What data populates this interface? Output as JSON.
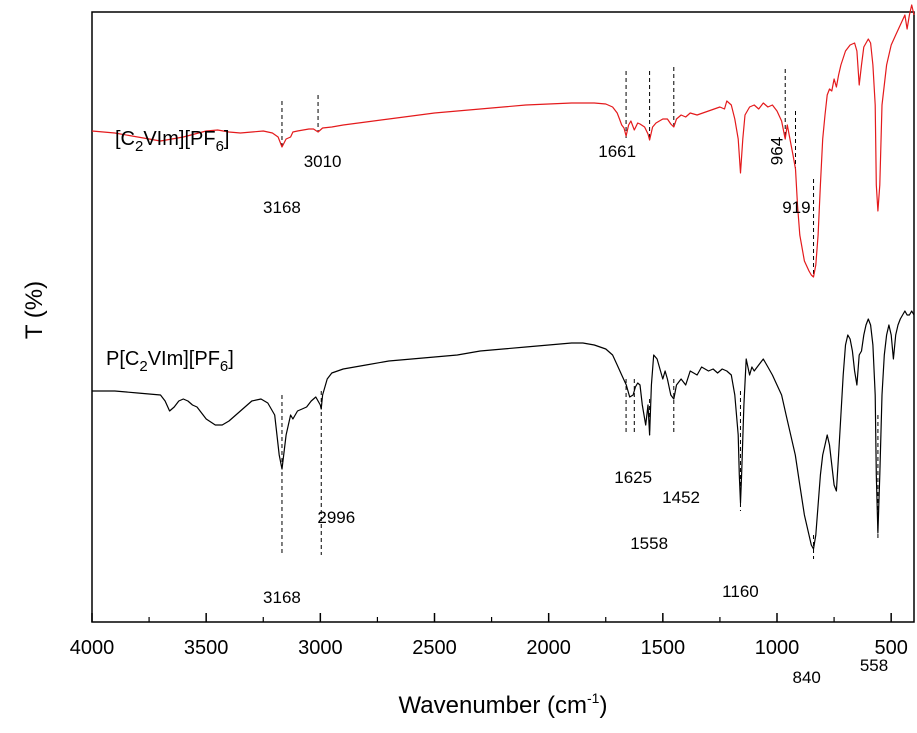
{
  "chart_data": {
    "type": "line",
    "xlabel_main": "Wavenumber (cm",
    "xlabel_sup": "-1",
    "xlabel_end": ")",
    "ylabel": "T (%)",
    "xlim": [
      4000,
      400
    ],
    "x_reversed": true,
    "x_ticks": [
      "4000",
      "3500",
      "3000",
      "2500",
      "2000",
      "1500",
      "1000",
      "500"
    ],
    "y_ticks": [],
    "series": [
      {
        "name_parts": [
          "[C",
          "2",
          "VIm][PF",
          "6",
          "]"
        ],
        "color": "#e41a1c",
        "points": [
          [
            4000,
            0.58
          ],
          [
            3900,
            0.59
          ],
          [
            3800,
            0.61
          ],
          [
            3700,
            0.63
          ],
          [
            3600,
            0.61
          ],
          [
            3500,
            0.58
          ],
          [
            3450,
            0.575
          ],
          [
            3400,
            0.585
          ],
          [
            3350,
            0.59
          ],
          [
            3300,
            0.585
          ],
          [
            3250,
            0.58
          ],
          [
            3210,
            0.59
          ],
          [
            3185,
            0.61
          ],
          [
            3168,
            0.66
          ],
          [
            3150,
            0.62
          ],
          [
            3130,
            0.61
          ],
          [
            3120,
            0.585
          ],
          [
            3100,
            0.58
          ],
          [
            3050,
            0.57
          ],
          [
            3030,
            0.57
          ],
          [
            3010,
            0.585
          ],
          [
            2990,
            0.565
          ],
          [
            2950,
            0.56
          ],
          [
            2900,
            0.55
          ],
          [
            2800,
            0.535
          ],
          [
            2700,
            0.52
          ],
          [
            2600,
            0.505
          ],
          [
            2500,
            0.49
          ],
          [
            2400,
            0.48
          ],
          [
            2300,
            0.47
          ],
          [
            2200,
            0.46
          ],
          [
            2100,
            0.45
          ],
          [
            2000,
            0.445
          ],
          [
            1900,
            0.44
          ],
          [
            1800,
            0.44
          ],
          [
            1750,
            0.445
          ],
          [
            1720,
            0.46
          ],
          [
            1700,
            0.49
          ],
          [
            1690,
            0.52
          ],
          [
            1680,
            0.55
          ],
          [
            1670,
            0.565
          ],
          [
            1661,
            0.605
          ],
          [
            1650,
            0.55
          ],
          [
            1640,
            0.53
          ],
          [
            1625,
            0.575
          ],
          [
            1610,
            0.54
          ],
          [
            1600,
            0.545
          ],
          [
            1580,
            0.56
          ],
          [
            1565,
            0.595
          ],
          [
            1558,
            0.625
          ],
          [
            1545,
            0.56
          ],
          [
            1530,
            0.54
          ],
          [
            1500,
            0.52
          ],
          [
            1480,
            0.52
          ],
          [
            1465,
            0.545
          ],
          [
            1452,
            0.56
          ],
          [
            1440,
            0.52
          ],
          [
            1420,
            0.5
          ],
          [
            1400,
            0.51
          ],
          [
            1380,
            0.49
          ],
          [
            1350,
            0.5
          ],
          [
            1300,
            0.48
          ],
          [
            1250,
            0.46
          ],
          [
            1230,
            0.47
          ],
          [
            1220,
            0.43
          ],
          [
            1200,
            0.45
          ],
          [
            1185,
            0.52
          ],
          [
            1170,
            0.62
          ],
          [
            1160,
            0.79
          ],
          [
            1150,
            0.62
          ],
          [
            1140,
            0.5
          ],
          [
            1120,
            0.46
          ],
          [
            1100,
            0.45
          ],
          [
            1080,
            0.47
          ],
          [
            1060,
            0.44
          ],
          [
            1040,
            0.46
          ],
          [
            1020,
            0.45
          ],
          [
            1000,
            0.48
          ],
          [
            980,
            0.53
          ],
          [
            964,
            0.62
          ],
          [
            955,
            0.55
          ],
          [
            940,
            0.64
          ],
          [
            930,
            0.7
          ],
          [
            919,
            0.77
          ],
          [
            910,
            0.95
          ],
          [
            900,
            1.1
          ],
          [
            880,
            1.23
          ],
          [
            860,
            1.28
          ],
          [
            850,
            1.3
          ],
          [
            840,
            1.31
          ],
          [
            830,
            1.25
          ],
          [
            820,
            1.1
          ],
          [
            810,
            0.85
          ],
          [
            800,
            0.62
          ],
          [
            790,
            0.5
          ],
          [
            780,
            0.4
          ],
          [
            770,
            0.37
          ],
          [
            760,
            0.38
          ],
          [
            750,
            0.32
          ],
          [
            740,
            0.36
          ],
          [
            730,
            0.3
          ],
          [
            720,
            0.25
          ],
          [
            700,
            0.18
          ],
          [
            680,
            0.15
          ],
          [
            660,
            0.14
          ],
          [
            650,
            0.18
          ],
          [
            640,
            0.35
          ],
          [
            630,
            0.25
          ],
          [
            620,
            0.16
          ],
          [
            600,
            0.12
          ],
          [
            590,
            0.14
          ],
          [
            580,
            0.25
          ],
          [
            570,
            0.45
          ],
          [
            565,
            0.85
          ],
          [
            558,
            0.98
          ],
          [
            550,
            0.85
          ],
          [
            540,
            0.45
          ],
          [
            520,
            0.25
          ],
          [
            500,
            0.15
          ],
          [
            480,
            0.1
          ],
          [
            460,
            0.05
          ],
          [
            440,
            0.0
          ],
          [
            430,
            0.07
          ],
          [
            420,
            0.0
          ],
          [
            410,
            -0.05
          ],
          [
            400,
            0.0
          ]
        ]
      },
      {
        "name_parts": [
          "P[C",
          "2",
          "VIm][PF",
          "6",
          "]"
        ],
        "color": "#000000",
        "points": [
          [
            4000,
            1.88
          ],
          [
            3900,
            1.88
          ],
          [
            3800,
            1.89
          ],
          [
            3700,
            1.9
          ],
          [
            3680,
            1.93
          ],
          [
            3660,
            1.98
          ],
          [
            3640,
            1.96
          ],
          [
            3620,
            1.93
          ],
          [
            3600,
            1.92
          ],
          [
            3580,
            1.93
          ],
          [
            3560,
            1.95
          ],
          [
            3540,
            1.96
          ],
          [
            3520,
            1.99
          ],
          [
            3500,
            2.02
          ],
          [
            3460,
            2.05
          ],
          [
            3430,
            2.05
          ],
          [
            3400,
            2.03
          ],
          [
            3350,
            1.98
          ],
          [
            3300,
            1.93
          ],
          [
            3260,
            1.92
          ],
          [
            3230,
            1.94
          ],
          [
            3200,
            2.0
          ],
          [
            3180,
            2.2
          ],
          [
            3168,
            2.27
          ],
          [
            3150,
            2.1
          ],
          [
            3130,
            2.0
          ],
          [
            3120,
            2.02
          ],
          [
            3100,
            1.98
          ],
          [
            3080,
            1.97
          ],
          [
            3060,
            1.96
          ],
          [
            3040,
            1.93
          ],
          [
            3020,
            1.91
          ],
          [
            3000,
            1.95
          ],
          [
            2996,
            1.97
          ],
          [
            2990,
            1.9
          ],
          [
            2970,
            1.82
          ],
          [
            2950,
            1.79
          ],
          [
            2900,
            1.77
          ],
          [
            2800,
            1.75
          ],
          [
            2700,
            1.73
          ],
          [
            2600,
            1.72
          ],
          [
            2500,
            1.71
          ],
          [
            2400,
            1.7
          ],
          [
            2300,
            1.68
          ],
          [
            2200,
            1.67
          ],
          [
            2100,
            1.66
          ],
          [
            2000,
            1.65
          ],
          [
            1900,
            1.64
          ],
          [
            1850,
            1.64
          ],
          [
            1800,
            1.65
          ],
          [
            1750,
            1.67
          ],
          [
            1720,
            1.7
          ],
          [
            1700,
            1.75
          ],
          [
            1680,
            1.8
          ],
          [
            1660,
            1.85
          ],
          [
            1645,
            1.91
          ],
          [
            1630,
            1.9
          ],
          [
            1620,
            1.86
          ],
          [
            1610,
            1.84
          ],
          [
            1600,
            1.85
          ],
          [
            1590,
            1.95
          ],
          [
            1575,
            2.05
          ],
          [
            1565,
            1.95
          ],
          [
            1558,
            2.1
          ],
          [
            1550,
            1.85
          ],
          [
            1540,
            1.7
          ],
          [
            1525,
            1.72
          ],
          [
            1510,
            1.78
          ],
          [
            1500,
            1.82
          ],
          [
            1490,
            1.78
          ],
          [
            1480,
            1.82
          ],
          [
            1465,
            1.9
          ],
          [
            1452,
            1.92
          ],
          [
            1440,
            1.85
          ],
          [
            1420,
            1.82
          ],
          [
            1400,
            1.85
          ],
          [
            1380,
            1.78
          ],
          [
            1350,
            1.8
          ],
          [
            1330,
            1.76
          ],
          [
            1300,
            1.78
          ],
          [
            1280,
            1.77
          ],
          [
            1260,
            1.79
          ],
          [
            1240,
            1.77
          ],
          [
            1220,
            1.78
          ],
          [
            1200,
            1.8
          ],
          [
            1185,
            1.9
          ],
          [
            1170,
            2.1
          ],
          [
            1165,
            2.3
          ],
          [
            1160,
            2.44
          ],
          [
            1155,
            2.3
          ],
          [
            1145,
            1.95
          ],
          [
            1135,
            1.72
          ],
          [
            1120,
            1.8
          ],
          [
            1110,
            1.76
          ],
          [
            1100,
            1.78
          ],
          [
            1080,
            1.75
          ],
          [
            1060,
            1.72
          ],
          [
            1040,
            1.76
          ],
          [
            1020,
            1.8
          ],
          [
            1000,
            1.85
          ],
          [
            980,
            1.9
          ],
          [
            960,
            2.0
          ],
          [
            940,
            2.1
          ],
          [
            920,
            2.2
          ],
          [
            900,
            2.35
          ],
          [
            880,
            2.5
          ],
          [
            860,
            2.6
          ],
          [
            850,
            2.65
          ],
          [
            840,
            2.67
          ],
          [
            830,
            2.6
          ],
          [
            820,
            2.45
          ],
          [
            810,
            2.3
          ],
          [
            800,
            2.2
          ],
          [
            790,
            2.15
          ],
          [
            780,
            2.1
          ],
          [
            770,
            2.15
          ],
          [
            760,
            2.25
          ],
          [
            750,
            2.35
          ],
          [
            740,
            2.38
          ],
          [
            730,
            2.2
          ],
          [
            720,
            2.0
          ],
          [
            710,
            1.8
          ],
          [
            700,
            1.65
          ],
          [
            690,
            1.6
          ],
          [
            680,
            1.62
          ],
          [
            670,
            1.68
          ],
          [
            660,
            1.78
          ],
          [
            650,
            1.85
          ],
          [
            640,
            1.7
          ],
          [
            630,
            1.68
          ],
          [
            620,
            1.6
          ],
          [
            610,
            1.55
          ],
          [
            600,
            1.52
          ],
          [
            590,
            1.55
          ],
          [
            580,
            1.65
          ],
          [
            570,
            1.9
          ],
          [
            565,
            2.3
          ],
          [
            558,
            2.59
          ],
          [
            550,
            2.3
          ],
          [
            540,
            1.9
          ],
          [
            530,
            1.7
          ],
          [
            520,
            1.6
          ],
          [
            510,
            1.55
          ],
          [
            500,
            1.6
          ],
          [
            490,
            1.72
          ],
          [
            480,
            1.6
          ],
          [
            470,
            1.55
          ],
          [
            460,
            1.52
          ],
          [
            450,
            1.5
          ],
          [
            440,
            1.48
          ],
          [
            430,
            1.5
          ],
          [
            420,
            1.5
          ],
          [
            410,
            1.48
          ],
          [
            400,
            1.5
          ]
        ]
      }
    ],
    "peak_markers": [
      {
        "wn": 3168,
        "y_top": 0.43,
        "y_bottom": 0.66
      },
      {
        "wn": 3010,
        "y_top": 0.4,
        "y_bottom": 0.58
      },
      {
        "wn": 1661,
        "y_top": 0.28,
        "y_bottom": 0.62
      },
      {
        "wn": 1558,
        "y_top": 0.28,
        "y_bottom": 0.62
      },
      {
        "wn": 1452,
        "y_top": 0.26,
        "y_bottom": 0.56
      },
      {
        "wn": 964,
        "y_top": 0.27,
        "y_bottom": 0.62
      },
      {
        "wn": 919,
        "y_top": 0.48,
        "y_bottom": 0.78
      },
      {
        "wn": 840,
        "y_top": 0.82,
        "y_bottom": 1.31
      },
      {
        "wn": 3168,
        "y_top": 1.9,
        "y_bottom": 2.7
      },
      {
        "wn": 2996,
        "y_top": 1.88,
        "y_bottom": 2.7
      },
      {
        "wn": 1661,
        "y_top": 1.82,
        "y_bottom": 2.1
      },
      {
        "wn": 1625,
        "y_top": 1.82,
        "y_bottom": 2.1
      },
      {
        "wn": 1558,
        "y_top": 1.92,
        "y_bottom": 2.1
      },
      {
        "wn": 1452,
        "y_top": 1.82,
        "y_bottom": 2.1
      },
      {
        "wn": 1160,
        "y_top": 1.88,
        "y_bottom": 2.48
      },
      {
        "wn": 840,
        "y_top": 2.6,
        "y_bottom": 2.72
      },
      {
        "wn": 558,
        "y_top": 2.0,
        "y_bottom": 2.62
      }
    ],
    "annotations": [
      {
        "text": "3168",
        "wn": 3168,
        "y": 0.99
      },
      {
        "text": "3010",
        "wn": 2990,
        "y": 0.76
      },
      {
        "text": "1661",
        "wn": 1700,
        "y": 0.71
      },
      {
        "text": "964",
        "wn": 975,
        "y": 0.68,
        "rotated": true
      },
      {
        "text": "919",
        "wn": 915,
        "y": 0.99
      },
      {
        "text": "3168",
        "wn": 3168,
        "y": 2.94
      },
      {
        "text": "2996",
        "wn": 2930,
        "y": 2.54
      },
      {
        "text": "1625",
        "wn": 1630,
        "y": 2.34
      },
      {
        "text": "1558",
        "wn": 1560,
        "y": 2.67
      },
      {
        "text": "1452",
        "wn": 1420,
        "y": 2.44
      },
      {
        "text": "1160",
        "wn": 1160,
        "y": 2.91
      },
      {
        "text": "840",
        "wn": 870,
        "y": 3.34
      },
      {
        "text": "558",
        "wn": 575,
        "y": 3.28
      }
    ]
  }
}
